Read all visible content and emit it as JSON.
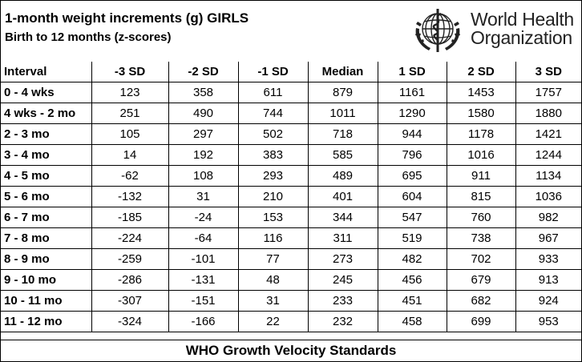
{
  "header": {
    "title": "1-month weight increments (g) GIRLS",
    "subtitle": "Birth to 12 months (z-scores)"
  },
  "logo": {
    "line1": "World Health",
    "line2": "Organization",
    "emblem_icon": "who-emblem-icon",
    "color": "#222222"
  },
  "table": {
    "columns": [
      "Interval",
      "-3 SD",
      "-2 SD",
      "-1 SD",
      "Median",
      "1 SD",
      "2 SD",
      "3 SD"
    ],
    "rows": [
      [
        "0 - 4 wks",
        "123",
        "358",
        "611",
        "879",
        "1161",
        "1453",
        "1757"
      ],
      [
        "4 wks - 2 mo",
        "251",
        "490",
        "744",
        "1011",
        "1290",
        "1580",
        "1880"
      ],
      [
        "2 - 3 mo",
        "105",
        "297",
        "502",
        "718",
        "944",
        "1178",
        "1421"
      ],
      [
        "3 - 4 mo",
        "14",
        "192",
        "383",
        "585",
        "796",
        "1016",
        "1244"
      ],
      [
        "4 - 5 mo",
        "-62",
        "108",
        "293",
        "489",
        "695",
        "911",
        "1134"
      ],
      [
        "5 - 6 mo",
        "-132",
        "31",
        "210",
        "401",
        "604",
        "815",
        "1036"
      ],
      [
        "6 - 7 mo",
        "-185",
        "-24",
        "153",
        "344",
        "547",
        "760",
        "982"
      ],
      [
        "7 - 8 mo",
        "-224",
        "-64",
        "116",
        "311",
        "519",
        "738",
        "967"
      ],
      [
        "8 - 9 mo",
        "-259",
        "-101",
        "77",
        "273",
        "482",
        "702",
        "933"
      ],
      [
        "9 - 10 mo",
        "-286",
        "-131",
        "48",
        "245",
        "456",
        "679",
        "913"
      ],
      [
        "10 - 11 mo",
        "-307",
        "-151",
        "31",
        "233",
        "451",
        "682",
        "924"
      ],
      [
        "11 - 12 mo",
        "-324",
        "-166",
        "22",
        "232",
        "458",
        "699",
        "953"
      ]
    ]
  },
  "footer": {
    "text": "WHO Growth Velocity Standards"
  }
}
